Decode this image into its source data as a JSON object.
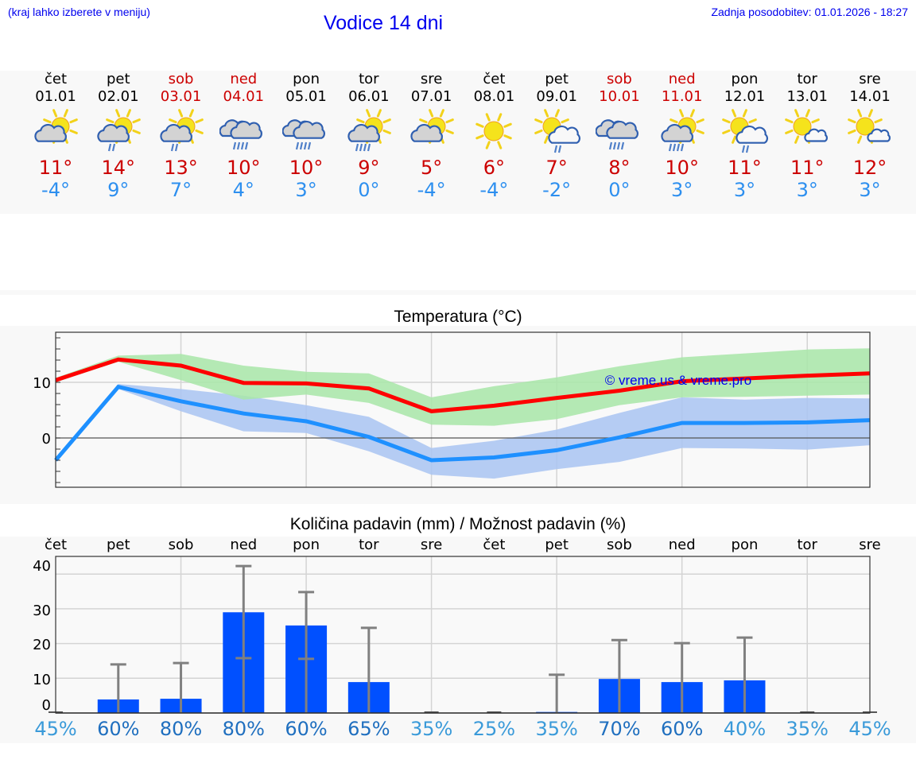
{
  "header": {
    "note": "(kraj lahko izberete v meniju)",
    "title": "Vodice 14 dni",
    "updated": "Zadnja posodobitev: 01.01.2026 - 18:27"
  },
  "days": [
    {
      "name": "čet",
      "date": "01.01",
      "weekend": false,
      "icon": "partly-cloudy-icon",
      "max": "11°",
      "min": "-4°"
    },
    {
      "name": "pet",
      "date": "02.01",
      "weekend": false,
      "icon": "partly-cloudy-light-rain-icon",
      "max": "14°",
      "min": "9°"
    },
    {
      "name": "sob",
      "date": "03.01",
      "weekend": true,
      "icon": "partly-cloudy-light-rain-icon",
      "max": "13°",
      "min": "7°"
    },
    {
      "name": "ned",
      "date": "04.01",
      "weekend": true,
      "icon": "overcast-rain-icon",
      "max": "10°",
      "min": "4°"
    },
    {
      "name": "pon",
      "date": "05.01",
      "weekend": false,
      "icon": "overcast-rain-icon",
      "max": "10°",
      "min": "3°"
    },
    {
      "name": "tor",
      "date": "06.01",
      "weekend": false,
      "icon": "partly-cloudy-rain-icon",
      "max": "9°",
      "min": "0°"
    },
    {
      "name": "sre",
      "date": "07.01",
      "weekend": false,
      "icon": "partly-cloudy-icon",
      "max": "5°",
      "min": "-4°"
    },
    {
      "name": "čet",
      "date": "08.01",
      "weekend": false,
      "icon": "sunny-icon",
      "max": "6°",
      "min": "-4°"
    },
    {
      "name": "pet",
      "date": "09.01",
      "weekend": false,
      "icon": "sun-cloud-light-rain-icon",
      "max": "7°",
      "min": "-2°"
    },
    {
      "name": "sob",
      "date": "10.01",
      "weekend": true,
      "icon": "overcast-rain-icon",
      "max": "8°",
      "min": "0°"
    },
    {
      "name": "ned",
      "date": "11.01",
      "weekend": true,
      "icon": "partly-cloudy-rain-icon",
      "max": "10°",
      "min": "3°"
    },
    {
      "name": "pon",
      "date": "12.01",
      "weekend": false,
      "icon": "sun-cloud-light-rain-icon",
      "max": "11°",
      "min": "3°"
    },
    {
      "name": "tor",
      "date": "13.01",
      "weekend": false,
      "icon": "mostly-sunny-icon",
      "max": "11°",
      "min": "3°"
    },
    {
      "name": "sre",
      "date": "14.01",
      "weekend": false,
      "icon": "mostly-sunny-icon",
      "max": "12°",
      "min": "3°"
    }
  ],
  "colors": {
    "max_line": "#ff0000",
    "min_line": "#1e90ff",
    "max_band": "#a8e6a8",
    "min_band": "#a9c4f2",
    "bar": "#0050ff",
    "error_bar": "#808080",
    "title_blue": "#0000ee",
    "weekend_red": "#cc0000"
  },
  "chart_data": [
    {
      "type": "line",
      "title": "Temperatura (°C)",
      "xlabel": "",
      "ylabel": "",
      "ylim": [
        -9,
        19
      ],
      "yticks": [
        0,
        10
      ],
      "grid": true,
      "watermark": "© vreme.us & vreme.pro",
      "categories": [
        "01.01",
        "02.01",
        "03.01",
        "04.01",
        "05.01",
        "06.01",
        "07.01",
        "08.01",
        "09.01",
        "10.01",
        "11.01",
        "12.01",
        "13.01",
        "14.01"
      ],
      "series": [
        {
          "name": "max",
          "values": [
            10.4,
            14.1,
            13.0,
            9.9,
            9.8,
            8.9,
            4.8,
            5.8,
            7.2,
            8.5,
            10.2,
            10.7,
            11.2,
            11.6
          ]
        },
        {
          "name": "min",
          "values": [
            -4.0,
            9.2,
            6.6,
            4.4,
            3.0,
            0.2,
            -4.0,
            -3.5,
            -2.2,
            0.1,
            2.7,
            2.7,
            2.8,
            3.2
          ]
        },
        {
          "name": "max_range_upper",
          "values": [
            10.8,
            14.8,
            15.1,
            13.0,
            11.9,
            11.6,
            7.3,
            9.3,
            10.9,
            12.9,
            14.5,
            15.2,
            15.9,
            16.1
          ]
        },
        {
          "name": "max_range_lower",
          "values": [
            10.0,
            13.7,
            10.4,
            6.9,
            7.8,
            6.3,
            2.4,
            2.2,
            3.4,
            5.9,
            7.3,
            7.4,
            7.6,
            7.8
          ]
        },
        {
          "name": "min_range_upper",
          "values": [
            -4.0,
            9.7,
            8.8,
            7.6,
            5.9,
            3.8,
            -1.8,
            -0.5,
            1.5,
            4.5,
            7.3,
            6.9,
            7.2,
            7.1
          ]
        },
        {
          "name": "min_range_lower",
          "values": [
            -4.3,
            8.8,
            4.8,
            1.2,
            0.9,
            -2.4,
            -6.6,
            -7.3,
            -5.6,
            -4.3,
            -1.8,
            -1.9,
            -2.1,
            -1.3
          ]
        }
      ]
    },
    {
      "type": "bar",
      "title": "Količina padavin (mm) / Možnost padavin (%)",
      "xlabel": "",
      "ylabel": "",
      "ylim": [
        0,
        40
      ],
      "yticks": [
        0,
        10,
        20,
        30,
        40
      ],
      "grid": true,
      "categories": [
        "čet",
        "pet",
        "sob",
        "ned",
        "pon",
        "tor",
        "sre",
        "čet",
        "pet",
        "sob",
        "ned",
        "pon",
        "tor",
        "sre"
      ],
      "series": [
        {
          "name": "precipitation_mm",
          "values": [
            0,
            3.9,
            4.1,
            29.0,
            25.2,
            8.9,
            0,
            0,
            0.3,
            9.8,
            8.9,
            9.4,
            0,
            0
          ]
        },
        {
          "name": "error_high_mm",
          "values": [
            0,
            14.0,
            14.4,
            42.3,
            34.8,
            24.5,
            0,
            0,
            11.0,
            21.0,
            20.1,
            21.7,
            0,
            0
          ]
        },
        {
          "name": "error_low_mm",
          "values": [
            0,
            0,
            0,
            15.8,
            15.6,
            0,
            0,
            0,
            0,
            0,
            0,
            0,
            0,
            0
          ]
        }
      ],
      "probability": [
        "45%",
        "60%",
        "80%",
        "80%",
        "60%",
        "65%",
        "35%",
        "25%",
        "35%",
        "70%",
        "60%",
        "40%",
        "35%",
        "45%"
      ]
    }
  ],
  "probability_colors": [
    "#3a9ad9",
    "#1f6fbf",
    "#1f6fbf",
    "#1f6fbf",
    "#1f6fbf",
    "#1f6fbf",
    "#3a9ad9",
    "#3a9ad9",
    "#3a9ad9",
    "#1f6fbf",
    "#1f6fbf",
    "#3a9ad9",
    "#3a9ad9",
    "#3a9ad9"
  ]
}
